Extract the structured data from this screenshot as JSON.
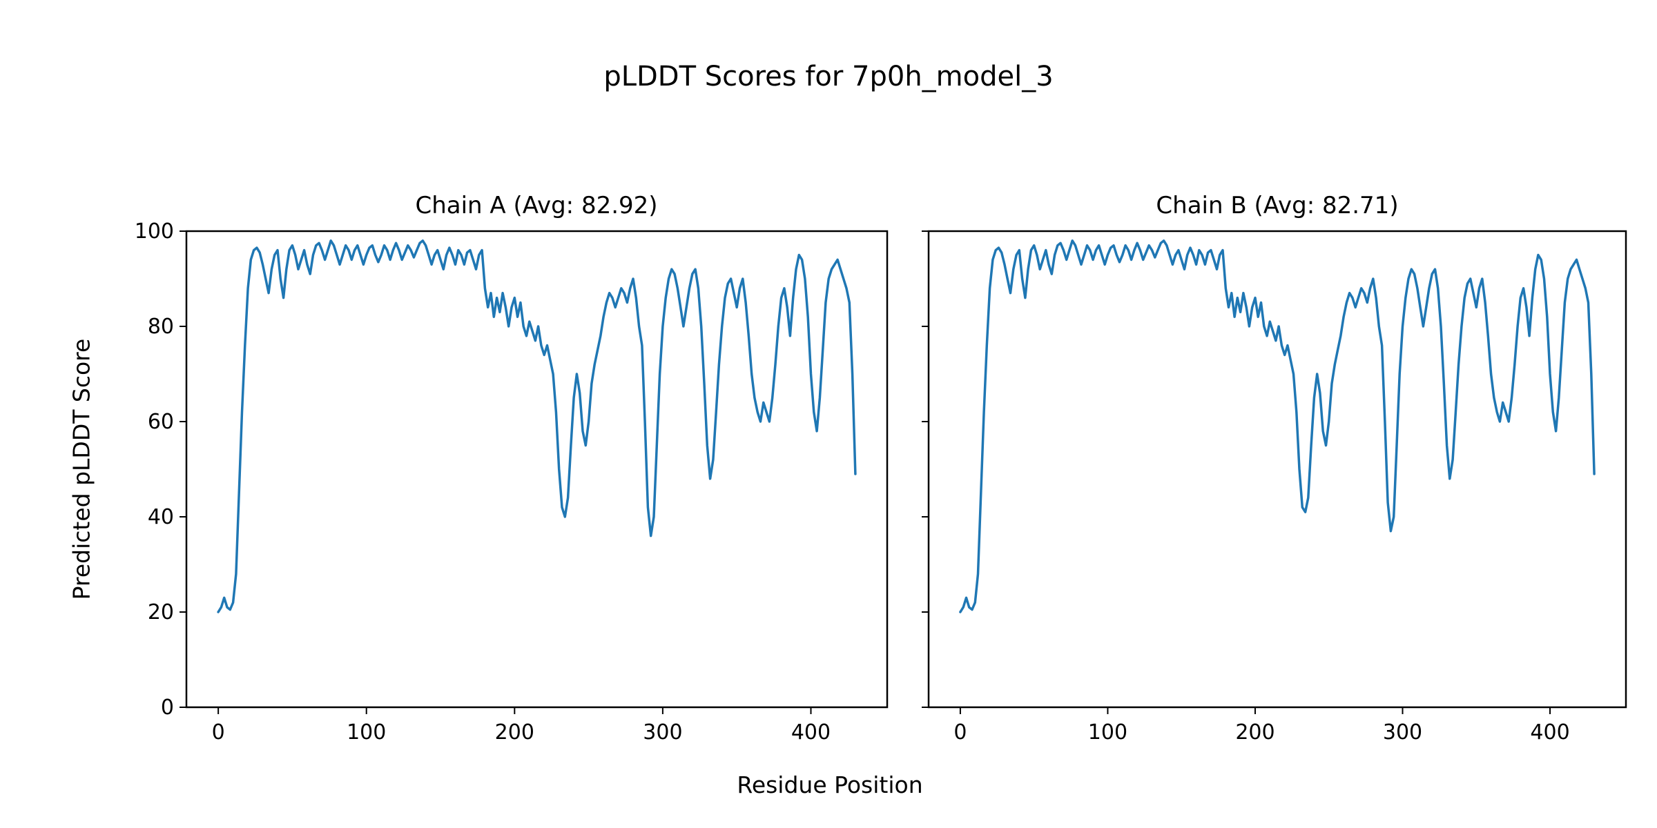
{
  "figure": {
    "title": "pLDDT Scores for 7p0h_model_3",
    "xlabel": "Residue Position",
    "ylabel": "Predicted pLDDT Score",
    "line_color": "#1f77b4",
    "axis_color": "#000000"
  },
  "chart_data": [
    {
      "type": "line",
      "title": "Chain A (Avg: 82.92)",
      "series_name": "Chain A",
      "avg": 82.92,
      "xlim": [
        -21.5,
        451.5
      ],
      "ylim": [
        0,
        100
      ],
      "x_ticks": [
        0,
        100,
        200,
        300,
        400
      ],
      "y_ticks": [
        0,
        20,
        40,
        60,
        80,
        100
      ],
      "y_tick_labels_visible": true,
      "x": [
        0,
        2,
        4,
        6,
        8,
        10,
        12,
        14,
        16,
        18,
        20,
        22,
        24,
        26,
        28,
        30,
        32,
        34,
        36,
        38,
        40,
        42,
        44,
        46,
        48,
        50,
        52,
        54,
        56,
        58,
        60,
        62,
        64,
        66,
        68,
        70,
        72,
        74,
        76,
        78,
        80,
        82,
        84,
        86,
        88,
        90,
        92,
        94,
        96,
        98,
        100,
        102,
        104,
        106,
        108,
        110,
        112,
        114,
        116,
        118,
        120,
        122,
        124,
        126,
        128,
        130,
        132,
        134,
        136,
        138,
        140,
        142,
        144,
        146,
        148,
        150,
        152,
        154,
        156,
        158,
        160,
        162,
        164,
        166,
        168,
        170,
        172,
        174,
        176,
        178,
        180,
        182,
        184,
        186,
        188,
        190,
        192,
        194,
        196,
        198,
        200,
        202,
        204,
        206,
        208,
        210,
        212,
        214,
        216,
        218,
        220,
        222,
        224,
        226,
        228,
        230,
        232,
        234,
        236,
        238,
        240,
        242,
        244,
        246,
        248,
        250,
        252,
        254,
        256,
        258,
        260,
        262,
        264,
        266,
        268,
        270,
        272,
        274,
        276,
        278,
        280,
        282,
        284,
        286,
        288,
        290,
        292,
        294,
        296,
        298,
        300,
        302,
        304,
        306,
        308,
        310,
        312,
        314,
        316,
        318,
        320,
        322,
        324,
        326,
        328,
        330,
        332,
        334,
        336,
        338,
        340,
        342,
        344,
        346,
        348,
        350,
        352,
        354,
        356,
        358,
        360,
        362,
        364,
        366,
        368,
        370,
        372,
        374,
        376,
        378,
        380,
        382,
        384,
        386,
        388,
        390,
        392,
        394,
        396,
        398,
        400,
        402,
        404,
        406,
        408,
        410,
        412,
        414,
        416,
        418,
        420,
        422,
        424,
        426,
        428,
        430
      ],
      "y": [
        20,
        21,
        23,
        21,
        20.5,
        22,
        28,
        45,
        62,
        76,
        88,
        94,
        96,
        96.5,
        95.5,
        93,
        90,
        87,
        92,
        95,
        96,
        90,
        86,
        92,
        96,
        97,
        95,
        92,
        94,
        96,
        93,
        91,
        95,
        97,
        97.5,
        96,
        94,
        96,
        98,
        97,
        95,
        93,
        95,
        97,
        96,
        94,
        96,
        97,
        95,
        93,
        95,
        96.5,
        97,
        95,
        93.5,
        95,
        97,
        96,
        94,
        96,
        97.5,
        96,
        94,
        95.5,
        97,
        96,
        94.5,
        96,
        97.5,
        98,
        97,
        95,
        93,
        95,
        96,
        94,
        92,
        95,
        96.5,
        95,
        93,
        96,
        95,
        93,
        95.5,
        96,
        94,
        92,
        95,
        96,
        88,
        84,
        87,
        82,
        86,
        83,
        87,
        84,
        80,
        84,
        86,
        82,
        85,
        80,
        78,
        81,
        79,
        77,
        80,
        76,
        74,
        76,
        73,
        70,
        62,
        50,
        42,
        40,
        44,
        55,
        65,
        70,
        66,
        58,
        55,
        60,
        68,
        72,
        75,
        78,
        82,
        85,
        87,
        86,
        84,
        86,
        88,
        87,
        85,
        88,
        90,
        86,
        80,
        76,
        60,
        42,
        36,
        40,
        55,
        70,
        80,
        86,
        90,
        92,
        91,
        88,
        84,
        80,
        84,
        88,
        91,
        92,
        88,
        80,
        68,
        55,
        48,
        52,
        62,
        72,
        80,
        86,
        89,
        90,
        87,
        84,
        88,
        90,
        85,
        78,
        70,
        65,
        62,
        60,
        64,
        62,
        60,
        65,
        72,
        80,
        86,
        88,
        84,
        78,
        86,
        92,
        95,
        94,
        90,
        82,
        70,
        62,
        58,
        65,
        75,
        85,
        90,
        92,
        93,
        94,
        92,
        90,
        88,
        85,
        70,
        49
      ]
    },
    {
      "type": "line",
      "title": "Chain B (Avg: 82.71)",
      "series_name": "Chain B",
      "avg": 82.71,
      "xlim": [
        -21.5,
        451.5
      ],
      "ylim": [
        0,
        100
      ],
      "x_ticks": [
        0,
        100,
        200,
        300,
        400
      ],
      "y_ticks": [
        0,
        20,
        40,
        60,
        80,
        100
      ],
      "y_tick_labels_visible": false,
      "x": [
        0,
        2,
        4,
        6,
        8,
        10,
        12,
        14,
        16,
        18,
        20,
        22,
        24,
        26,
        28,
        30,
        32,
        34,
        36,
        38,
        40,
        42,
        44,
        46,
        48,
        50,
        52,
        54,
        56,
        58,
        60,
        62,
        64,
        66,
        68,
        70,
        72,
        74,
        76,
        78,
        80,
        82,
        84,
        86,
        88,
        90,
        92,
        94,
        96,
        98,
        100,
        102,
        104,
        106,
        108,
        110,
        112,
        114,
        116,
        118,
        120,
        122,
        124,
        126,
        128,
        130,
        132,
        134,
        136,
        138,
        140,
        142,
        144,
        146,
        148,
        150,
        152,
        154,
        156,
        158,
        160,
        162,
        164,
        166,
        168,
        170,
        172,
        174,
        176,
        178,
        180,
        182,
        184,
        186,
        188,
        190,
        192,
        194,
        196,
        198,
        200,
        202,
        204,
        206,
        208,
        210,
        212,
        214,
        216,
        218,
        220,
        222,
        224,
        226,
        228,
        230,
        232,
        234,
        236,
        238,
        240,
        242,
        244,
        246,
        248,
        250,
        252,
        254,
        256,
        258,
        260,
        262,
        264,
        266,
        268,
        270,
        272,
        274,
        276,
        278,
        280,
        282,
        284,
        286,
        288,
        290,
        292,
        294,
        296,
        298,
        300,
        302,
        304,
        306,
        308,
        310,
        312,
        314,
        316,
        318,
        320,
        322,
        324,
        326,
        328,
        330,
        332,
        334,
        336,
        338,
        340,
        342,
        344,
        346,
        348,
        350,
        352,
        354,
        356,
        358,
        360,
        362,
        364,
        366,
        368,
        370,
        372,
        374,
        376,
        378,
        380,
        382,
        384,
        386,
        388,
        390,
        392,
        394,
        396,
        398,
        400,
        402,
        404,
        406,
        408,
        410,
        412,
        414,
        416,
        418,
        420,
        422,
        424,
        426,
        428,
        430
      ],
      "y": [
        20,
        21,
        23,
        21,
        20.5,
        22,
        28,
        45,
        62,
        76,
        88,
        94,
        96,
        96.5,
        95.5,
        93,
        90,
        87,
        92,
        95,
        96,
        90,
        86,
        92,
        96,
        97,
        95,
        92,
        94,
        96,
        93,
        91,
        95,
        97,
        97.5,
        96,
        94,
        96,
        98,
        97,
        95,
        93,
        95,
        97,
        96,
        94,
        96,
        97,
        95,
        93,
        95,
        96.5,
        97,
        95,
        93.5,
        95,
        97,
        96,
        94,
        96,
        97.5,
        96,
        94,
        95.5,
        97,
        96,
        94.5,
        96,
        97.5,
        98,
        97,
        95,
        93,
        95,
        96,
        94,
        92,
        95,
        96.5,
        95,
        93,
        96,
        95,
        93,
        95.5,
        96,
        94,
        92,
        95,
        96,
        88,
        84,
        87,
        82,
        86,
        83,
        87,
        84,
        80,
        84,
        86,
        82,
        85,
        80,
        78,
        81,
        79,
        77,
        80,
        76,
        74,
        76,
        73,
        70,
        62,
        50,
        42,
        41,
        44,
        55,
        65,
        70,
        66,
        58,
        55,
        60,
        68,
        72,
        75,
        78,
        82,
        85,
        87,
        86,
        84,
        86,
        88,
        87,
        85,
        88,
        90,
        86,
        80,
        76,
        60,
        43,
        37,
        40,
        55,
        70,
        80,
        86,
        90,
        92,
        91,
        88,
        84,
        80,
        84,
        88,
        91,
        92,
        88,
        80,
        68,
        55,
        48,
        52,
        62,
        72,
        80,
        86,
        89,
        90,
        87,
        84,
        88,
        90,
        85,
        78,
        70,
        65,
        62,
        60,
        64,
        62,
        60,
        65,
        72,
        80,
        86,
        88,
        84,
        78,
        86,
        92,
        95,
        94,
        90,
        82,
        70,
        62,
        58,
        65,
        75,
        85,
        90,
        92,
        93,
        94,
        92,
        90,
        88,
        85,
        70,
        49
      ]
    }
  ]
}
